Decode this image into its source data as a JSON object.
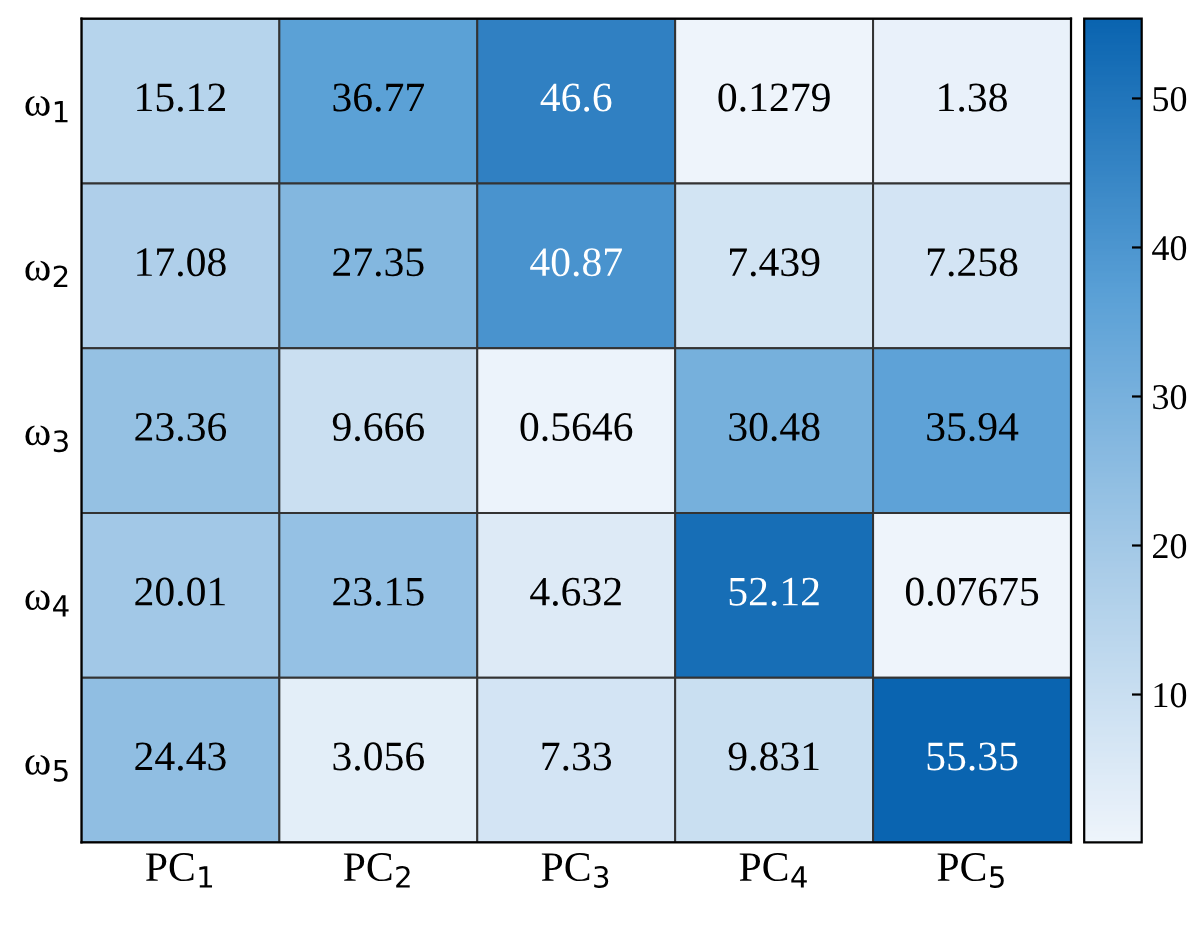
{
  "chart_data": {
    "type": "heatmap",
    "categories": [
      "PC$_{1}$",
      "PC$_{2}$",
      "PC$_{3}$",
      "PC$_{4}$",
      "PC$_{5}$"
    ],
    "y_categories": [
      "ω$_{1}$",
      "ω$_{2}$",
      "ω$_{3}$",
      "ω$_{4}$",
      "ω$_{5}$"
    ],
    "cells": [
      [
        15.12,
        36.77,
        46.6,
        0.1279,
        1.38
      ],
      [
        17.08,
        27.35,
        40.87,
        7.439,
        7.258
      ],
      [
        23.36,
        9.666,
        0.5646,
        30.48,
        35.94
      ],
      [
        20.01,
        23.15,
        4.632,
        52.12,
        0.07675
      ],
      [
        24.43,
        3.056,
        7.33,
        9.831,
        55.35
      ]
    ],
    "data_labels": true,
    "clim": [
      0.07675,
      55.35
    ],
    "cticks": [
      10,
      20,
      30,
      40,
      50
    ]
  }
}
